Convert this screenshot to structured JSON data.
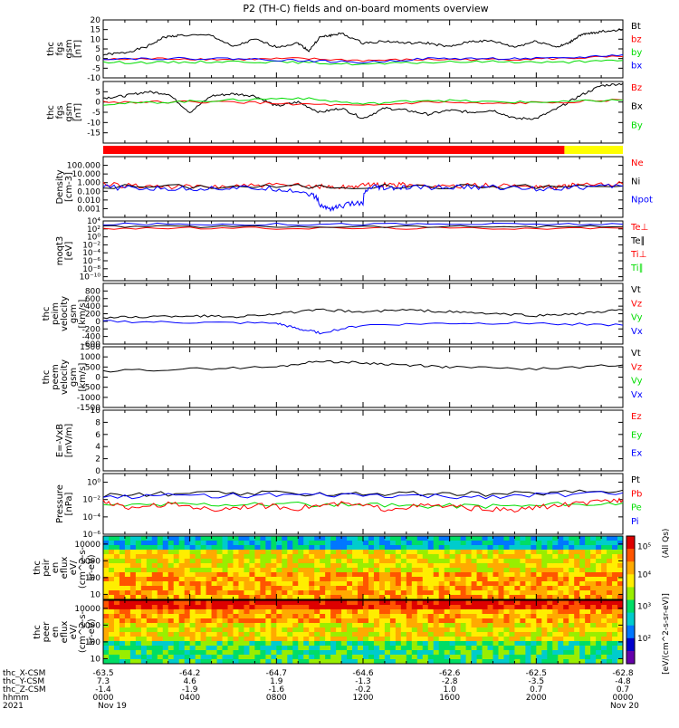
{
  "title": "P2 (TH-C) fields and on-board moments overview",
  "colors": {
    "black": "#000000",
    "red": "#ff0000",
    "green": "#00dd00",
    "blue": "#0000ff",
    "yellow": "#ffff00"
  },
  "chart_data": [
    {
      "type": "line",
      "id": "fgs_xyz",
      "ylabel": [
        "thc",
        "fgs",
        "gsm",
        "[nT]"
      ],
      "ylim": [
        -10,
        20
      ],
      "yticks": [
        -10,
        -5,
        0,
        5,
        10,
        15,
        20
      ],
      "legend": [
        {
          "label": "Bt",
          "color": "black"
        },
        {
          "label": "bz",
          "color": "red"
        },
        {
          "label": "by",
          "color": "green"
        },
        {
          "label": "bx",
          "color": "blue"
        }
      ],
      "series": [
        {
          "name": "Bt",
          "color": "black",
          "x": [
            0,
            1,
            2,
            2.8,
            3.5,
            5,
            6,
            7,
            8,
            9,
            9.5,
            10,
            10.5,
            11,
            12,
            13,
            14,
            15,
            16,
            17,
            18,
            19,
            20,
            21,
            21.5,
            22,
            22.5,
            23,
            24
          ],
          "y": [
            2,
            3,
            6,
            11,
            12,
            12,
            6,
            10,
            6,
            8,
            4,
            11,
            12,
            13,
            8,
            9,
            8,
            8,
            6,
            9,
            9,
            6,
            9,
            6,
            8,
            12,
            13,
            14,
            15
          ]
        },
        {
          "name": "bz",
          "color": "red",
          "x": [
            0,
            3,
            6,
            9,
            12,
            15,
            18,
            21,
            24
          ],
          "y": [
            -0.5,
            0,
            -0.5,
            0,
            -1,
            -0.5,
            -0.5,
            0,
            1
          ]
        },
        {
          "name": "by",
          "color": "green",
          "x": [
            0,
            3,
            6,
            9,
            12,
            15,
            18,
            21,
            24
          ],
          "y": [
            -2,
            -2,
            -1.5,
            -2,
            -3,
            -2,
            -1.5,
            -2,
            -1
          ]
        },
        {
          "name": "bx",
          "color": "blue",
          "x": [
            0,
            3,
            6,
            9,
            12,
            15,
            18,
            21,
            24
          ],
          "y": [
            0,
            0,
            0,
            -1,
            -2,
            0,
            0,
            0,
            2
          ]
        }
      ]
    },
    {
      "type": "line",
      "id": "fgs_bounds",
      "ylabel": [
        "thc",
        "fgs",
        "gsm",
        "[nT]"
      ],
      "ylim": [
        -20,
        10
      ],
      "yticks": [
        -15,
        -10,
        -5,
        0,
        5
      ],
      "legend": [
        {
          "label": "Bz",
          "color": "red"
        },
        {
          "label": "Bx",
          "color": "black"
        },
        {
          "label": "By",
          "color": "green"
        }
      ],
      "series": [
        {
          "name": "Bx",
          "color": "black",
          "x": [
            0,
            1,
            2,
            3,
            4,
            5,
            6,
            7,
            8,
            9,
            10,
            11,
            12,
            13,
            14,
            15,
            16,
            17,
            18,
            19,
            20,
            21,
            22,
            23,
            24
          ],
          "y": [
            2,
            3,
            5,
            4,
            -5,
            3,
            4,
            3,
            -2,
            0,
            -5,
            -3,
            -8,
            -3,
            -4,
            -6,
            -4,
            -5,
            -4,
            -8,
            -8,
            -3,
            3,
            8,
            9
          ]
        },
        {
          "name": "Bz",
          "color": "red",
          "x": [
            0,
            3,
            6,
            9,
            12,
            15,
            18,
            21,
            24
          ],
          "y": [
            0,
            0,
            0,
            -1,
            -2,
            0,
            -1,
            0,
            1
          ]
        },
        {
          "name": "By",
          "color": "green",
          "x": [
            0,
            3,
            6,
            9,
            12,
            15,
            18,
            21,
            24
          ],
          "y": [
            -1,
            0,
            1,
            2,
            -1,
            1,
            0,
            0,
            1
          ]
        }
      ]
    },
    {
      "type": "bar",
      "id": "mode_bar",
      "segments": [
        {
          "from": 0,
          "to": 21.3,
          "color": "red"
        },
        {
          "from": 21.3,
          "to": 24,
          "color": "yellow"
        }
      ]
    },
    {
      "type": "line",
      "id": "density",
      "ylabel": [
        "Density",
        "[cm-3]"
      ],
      "log": true,
      "ylim": [
        0.0001,
        1000
      ],
      "yticks": [
        0.001,
        0.01,
        0.1,
        1,
        10,
        100
      ],
      "yticklabels": [
        "0.001",
        "0.010",
        "0.100",
        "1.000",
        "10.000",
        "100.000"
      ],
      "legend": [
        {
          "label": "Ne",
          "color": "red"
        },
        {
          "label": "Ni",
          "color": "black"
        },
        {
          "label": "Npot",
          "color": "blue"
        }
      ],
      "series": [
        {
          "name": "Ne",
          "color": "red",
          "x": [
            0,
            2,
            4,
            6,
            8,
            10,
            11,
            12,
            13,
            14,
            16,
            18,
            20,
            21,
            22,
            24
          ],
          "y": [
            0.6,
            0.4,
            0.3,
            0.4,
            0.5,
            0.4,
            0.3,
            0.5,
            0.6,
            0.5,
            0.4,
            0.5,
            0.4,
            0.3,
            0.5,
            0.7
          ]
        },
        {
          "name": "Ni",
          "color": "black",
          "x": [
            0,
            6,
            12,
            18,
            24
          ],
          "y": [
            0.35,
            0.35,
            0.35,
            0.35,
            0.4
          ]
        },
        {
          "name": "Npot",
          "color": "blue",
          "x": [
            0,
            2,
            4,
            6,
            8,
            9.5,
            10,
            10.5,
            11,
            12,
            12.5,
            13,
            14,
            16,
            18,
            20,
            22,
            24
          ],
          "y": [
            0.3,
            0.2,
            0.2,
            0.25,
            0.2,
            0.05,
            0.002,
            0.001,
            0.002,
            0.005,
            0.3,
            0.2,
            0.25,
            0.3,
            0.3,
            0.2,
            0.3,
            0.4
          ]
        }
      ]
    },
    {
      "type": "line",
      "id": "temperature",
      "ylabel": [
        "moqt3",
        "[eV]"
      ],
      "log": true,
      "ylim": [
        1e-11,
        10000.0
      ],
      "yticks": [
        1e-10,
        1e-08,
        1e-06,
        0.0001,
        0.01,
        1,
        100,
        10000
      ],
      "yticklabels": [
        "10⁻¹⁰",
        "10⁻⁸",
        "10⁻⁶",
        "10⁻⁴",
        "10⁻²",
        "10⁰",
        "10²",
        "10⁴"
      ],
      "legend": [
        {
          "label": "Te⊥",
          "color": "red"
        },
        {
          "label": "Te∥",
          "color": "black"
        },
        {
          "label": "Ti⊥",
          "color": "red"
        },
        {
          "label": "Ti∥",
          "color": "green"
        }
      ],
      "series": [
        {
          "name": "Ti",
          "color": "blue",
          "x": [
            0,
            6,
            12,
            18,
            24
          ],
          "y": [
            1500,
            1500,
            1500,
            1500,
            1500
          ]
        },
        {
          "name": "Te",
          "color": "red",
          "x": [
            0,
            6,
            12,
            18,
            24
          ],
          "y": [
            150,
            150,
            150,
            150,
            150
          ]
        },
        {
          "name": "Tpar",
          "color": "black",
          "x": [
            0,
            6,
            12,
            18,
            24
          ],
          "y": [
            400,
            400,
            400,
            400,
            400
          ]
        }
      ]
    },
    {
      "type": "line",
      "id": "peim_velocity",
      "ylabel": [
        "thc",
        "peim",
        "velocity",
        "gsm",
        "[km/s]"
      ],
      "ylim": [
        -600,
        1000
      ],
      "yticks": [
        -600,
        -400,
        -200,
        0,
        200,
        400,
        600,
        800
      ],
      "legend": [
        {
          "label": "Vt",
          "color": "black"
        },
        {
          "label": "Vz",
          "color": "red"
        },
        {
          "label": "Vy",
          "color": "green"
        },
        {
          "label": "Vx",
          "color": "blue"
        }
      ],
      "series": [
        {
          "name": "Vt",
          "color": "black",
          "x": [
            0,
            2,
            4,
            6,
            8,
            10,
            12,
            14,
            16,
            18,
            20,
            22,
            24
          ],
          "y": [
            100,
            120,
            150,
            120,
            200,
            300,
            250,
            300,
            250,
            200,
            150,
            200,
            300
          ]
        },
        {
          "name": "Vx",
          "color": "blue",
          "x": [
            0,
            4,
            8,
            9,
            10,
            12,
            16,
            20,
            24
          ],
          "y": [
            0,
            -30,
            -50,
            -200,
            -300,
            -100,
            -50,
            -50,
            -100
          ]
        }
      ]
    },
    {
      "type": "line",
      "id": "peem_velocity",
      "ylabel": [
        "thc",
        "peem",
        "velocity",
        "gsm",
        "[km/s]"
      ],
      "ylim": [
        -1500,
        1500
      ],
      "yticks": [
        -1500,
        -1000,
        -500,
        0,
        500,
        1000,
        1500
      ],
      "legend": [
        {
          "label": "Vt",
          "color": "black"
        },
        {
          "label": "Vz",
          "color": "red"
        },
        {
          "label": "Vy",
          "color": "green"
        },
        {
          "label": "Vx",
          "color": "blue"
        }
      ],
      "series": [
        {
          "name": "Vt",
          "color": "black",
          "x": [
            0,
            4,
            8,
            10,
            12,
            14,
            16,
            20,
            24
          ],
          "y": [
            300,
            400,
            500,
            800,
            700,
            600,
            500,
            400,
            600
          ]
        }
      ]
    },
    {
      "type": "line",
      "id": "efield",
      "ylabel": [
        "E=-VxB",
        "[mV/m]"
      ],
      "ylim": [
        0,
        10
      ],
      "yticks": [
        0,
        2,
        4,
        6,
        8,
        10
      ],
      "legend": [
        {
          "label": "Ez",
          "color": "red"
        },
        {
          "label": "Ey",
          "color": "green"
        },
        {
          "label": "Ex",
          "color": "blue"
        }
      ],
      "series": []
    },
    {
      "type": "line",
      "id": "pressure",
      "ylabel": [
        "Pressure",
        "[nPa]"
      ],
      "log": true,
      "ylim": [
        1e-06,
        10
      ],
      "yticks": [
        1e-06,
        0.0001,
        0.01,
        1
      ],
      "yticklabels": [
        "10⁻⁶",
        "10⁻⁴",
        "10⁻²",
        "10⁰"
      ],
      "legend": [
        {
          "label": "Pt",
          "color": "black"
        },
        {
          "label": "Pb",
          "color": "red"
        },
        {
          "label": "Pe",
          "color": "green"
        },
        {
          "label": "Pi",
          "color": "blue"
        }
      ],
      "series": [
        {
          "name": "Pt",
          "color": "black",
          "x": [
            0,
            4,
            8,
            12,
            16,
            20,
            24
          ],
          "y": [
            0.03,
            0.05,
            0.05,
            0.05,
            0.04,
            0.05,
            0.12
          ]
        },
        {
          "name": "Pi",
          "color": "blue",
          "x": [
            0,
            4,
            8,
            12,
            16,
            20,
            24
          ],
          "y": [
            0.02,
            0.03,
            0.03,
            0.03,
            0.02,
            0.03,
            0.06
          ]
        },
        {
          "name": "Pe",
          "color": "green",
          "x": [
            0,
            4,
            8,
            12,
            16,
            20,
            24
          ],
          "y": [
            0.002,
            0.003,
            0.003,
            0.002,
            0.002,
            0.002,
            0.004
          ]
        },
        {
          "name": "Pb",
          "color": "red",
          "x": [
            0,
            1,
            3,
            5,
            7,
            9,
            11,
            13,
            15,
            17,
            19,
            21,
            23,
            24
          ],
          "y": [
            0.005,
            0.001,
            0.003,
            0.0005,
            0.002,
            0.001,
            0.003,
            0.0008,
            0.002,
            0.001,
            0.0005,
            0.002,
            0.005,
            0.01
          ]
        }
      ]
    },
    {
      "type": "heatmap",
      "id": "peir_spec",
      "ylabel": [
        "thc",
        "peir",
        "en",
        "eflux",
        "eV/",
        "(cm^2-s-",
        "sr-eV)"
      ],
      "log": true,
      "ylim": [
        5,
        30000
      ],
      "yticks": [
        10,
        100,
        1000,
        10000
      ],
      "yticklabels": [
        "10",
        "100",
        "1000",
        "10000"
      ]
    },
    {
      "type": "heatmap",
      "id": "peer_spec",
      "ylabel": [
        "thc",
        "peer",
        "en",
        "eflux",
        "eV/",
        "(cm^2-s-",
        "sr-eV)"
      ],
      "log": true,
      "ylim": [
        5,
        30000
      ],
      "yticks": [
        10,
        100,
        1000,
        10000
      ],
      "yticklabels": [
        "10",
        "100",
        "1000",
        "10000"
      ]
    }
  ],
  "colorbar": {
    "label": "[eV/(cm^2-s-sr-eV)]",
    "label2": "(All Qs)",
    "ticks": [
      {
        "label": "10⁵",
        "pos": 0.08
      },
      {
        "label": "10⁴",
        "pos": 0.3
      },
      {
        "label": "10³",
        "pos": 0.55
      },
      {
        "label": "10²",
        "pos": 0.8
      }
    ]
  },
  "xaxis": {
    "ticks": [
      0,
      4,
      8,
      12,
      16,
      20,
      24
    ],
    "rows": [
      {
        "label": "thc_X-CSM",
        "values": [
          "-63.5",
          "-64.2",
          "-64.7",
          "-64.6",
          "-62.6",
          "-62.5",
          "-62.8"
        ]
      },
      {
        "label": "thc_Y-CSM",
        "values": [
          "7.3",
          "4.6",
          "1.9",
          "-1.3",
          "-2.8",
          "-3.5",
          "-4.8"
        ]
      },
      {
        "label": "thc_Z-CSM",
        "values": [
          "-1.4",
          "-1.9",
          "-1.6",
          "-0.2",
          "1.0",
          "0.7",
          "0.7"
        ]
      },
      {
        "label": "hhmm",
        "values": [
          "0000",
          "0400",
          "0800",
          "1200",
          "1600",
          "2000",
          "0000"
        ]
      }
    ],
    "year": "2021",
    "date_start": "Nov 19",
    "date_end": "Nov 20"
  }
}
